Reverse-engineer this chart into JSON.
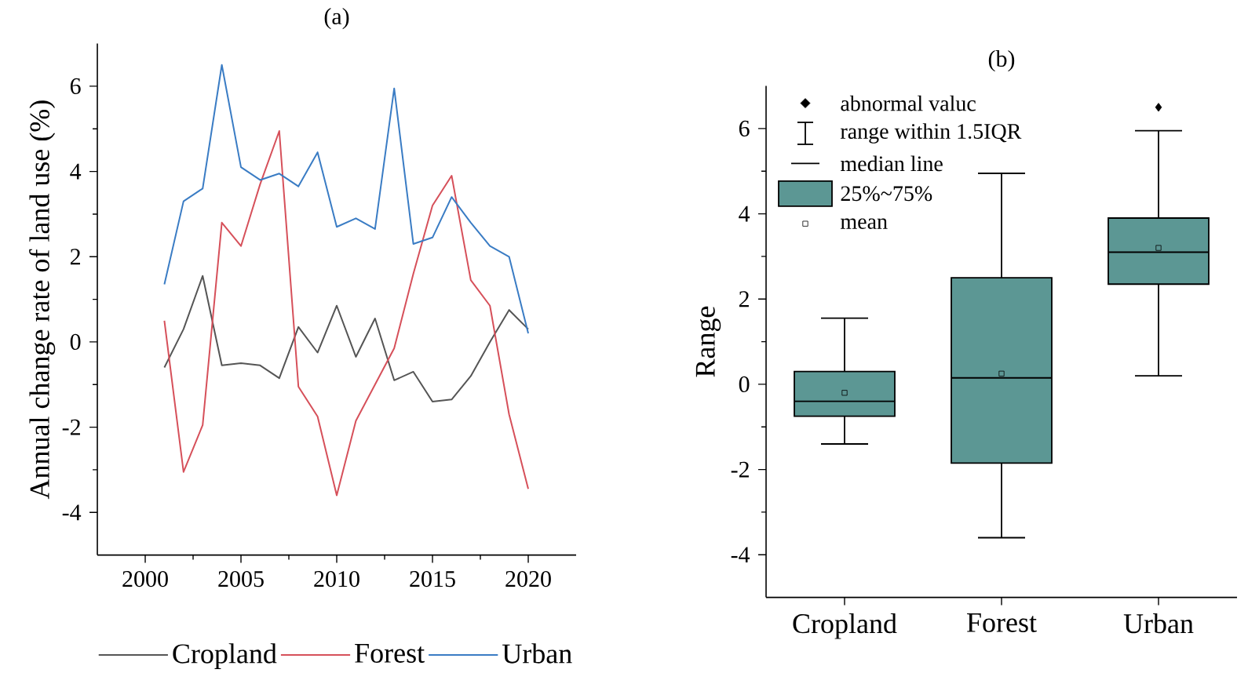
{
  "chart_data": [
    {
      "type": "line",
      "title": "(a)",
      "ylabel": "Annual change rate of land use (%)",
      "x": [
        2001,
        2002,
        2003,
        2004,
        2005,
        2006,
        2007,
        2008,
        2009,
        2010,
        2011,
        2012,
        2013,
        2014,
        2015,
        2016,
        2017,
        2018,
        2019,
        2020
      ],
      "xlim": [
        1997.5,
        2022.5
      ],
      "xticks": [
        2000,
        2005,
        2010,
        2015,
        2020
      ],
      "ylim": [
        -5,
        7
      ],
      "yticks": [
        -4,
        -2,
        0,
        2,
        4,
        6
      ],
      "legend": "bottom",
      "line_style": "solid",
      "series": [
        {
          "name": "Cropland",
          "color": "#555555",
          "values": [
            -0.6,
            0.3,
            1.55,
            -0.55,
            -0.5,
            -0.55,
            -0.85,
            0.35,
            -0.25,
            0.85,
            -0.35,
            0.55,
            -0.9,
            -0.7,
            -1.4,
            -1.35,
            -0.8,
            0.0,
            0.75,
            0.3
          ]
        },
        {
          "name": "Forest",
          "color": "#d6505a",
          "values": [
            0.5,
            -3.05,
            -1.95,
            2.8,
            2.25,
            3.7,
            4.95,
            -1.05,
            -1.75,
            -3.6,
            -1.85,
            -1.0,
            -0.15,
            1.6,
            3.2,
            3.9,
            1.45,
            0.85,
            -1.7,
            -3.45
          ]
        },
        {
          "name": "Urban",
          "color": "#3a7cc4",
          "values": [
            1.35,
            3.3,
            3.6,
            6.5,
            4.1,
            3.8,
            3.95,
            3.65,
            4.45,
            2.7,
            2.9,
            2.65,
            5.95,
            2.3,
            2.45,
            3.4,
            2.8,
            2.25,
            2.0,
            0.2
          ]
        }
      ]
    },
    {
      "type": "box",
      "title": "(b)",
      "ylabel": "Range",
      "categories": [
        "Cropland",
        "Forest",
        "Urban"
      ],
      "ylim": [
        -5,
        7
      ],
      "yticks": [
        -4,
        -2,
        0,
        2,
        4,
        6
      ],
      "annotations": [
        "abnormal valuc",
        "range within 1.5IQR",
        "median line",
        "25%~75%",
        "mean"
      ],
      "series": [
        {
          "color": "#5c9794",
          "boxes": [
            {
              "low": -1.4,
              "q1": -0.75,
              "median": -0.4,
              "q3": 0.3,
              "high": 1.55,
              "mean": -0.2
            },
            {
              "low": -3.6,
              "q1": -1.85,
              "median": 0.15,
              "q3": 2.5,
              "high": 4.95,
              "mean": 0.25
            },
            {
              "low": 0.2,
              "q1": 2.35,
              "median": 3.1,
              "q3": 3.9,
              "high": 5.95,
              "mean": 3.2,
              "outliers": [
                6.5
              ]
            }
          ]
        }
      ]
    }
  ]
}
